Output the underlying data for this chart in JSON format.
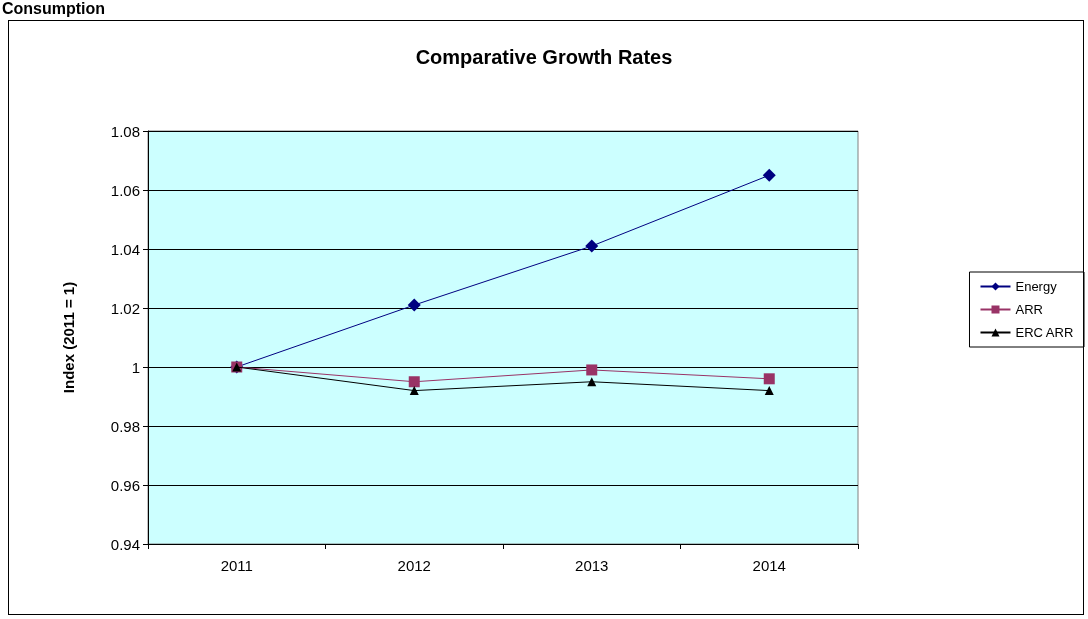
{
  "chart_data": {
    "type": "line",
    "title": "Comparative Growth Rates",
    "ylabel": "Index (2011 = 1)",
    "annotations": [
      "Consumption"
    ],
    "categories": [
      "2011",
      "2012",
      "2013",
      "2014"
    ],
    "series": [
      {
        "name": "Energy",
        "color": "#000080",
        "marker": "diamond",
        "values": [
          1.0,
          1.021,
          1.041,
          1.065
        ]
      },
      {
        "name": "ARR",
        "color": "#993366",
        "marker": "square",
        "values": [
          1.0,
          0.995,
          0.999,
          0.996
        ]
      },
      {
        "name": "ERC ARR",
        "color": "#000000",
        "marker": "triangle",
        "values": [
          1.0,
          0.992,
          0.995,
          0.992
        ]
      }
    ],
    "ylim": [
      0.94,
      1.08
    ],
    "yticks": [
      0.94,
      0.96,
      0.98,
      1,
      1.02,
      1.04,
      1.06,
      1.08
    ],
    "grid": "y",
    "legend": "right",
    "line_style": "solid"
  }
}
